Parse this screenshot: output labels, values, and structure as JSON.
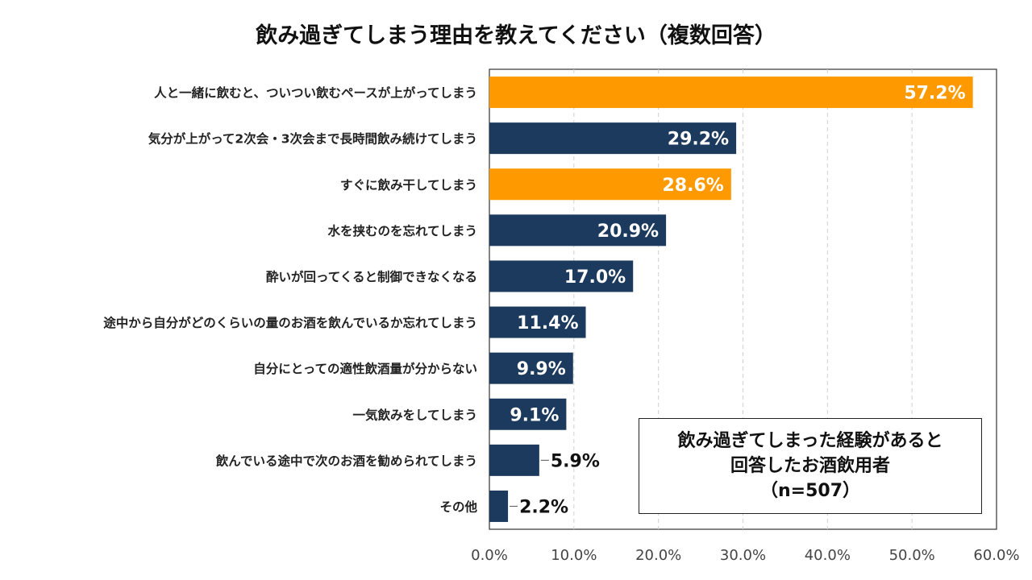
{
  "chart_data": {
    "type": "bar",
    "orientation": "horizontal",
    "title": "飲み過ぎてしまう理由を教えてください（複数回答）",
    "categories": [
      "人と一緒に飲むと、ついつい飲むペースが上がってしまう",
      "気分が上がって2次会・3次会まで長時間飲み続けてしまう",
      "すぐに飲み干してしまう",
      "水を挟むのを忘れてしまう",
      "酔いが回ってくると制御できなくなる",
      "途中から自分がどのくらいの量のお酒を飲んでいるか忘れてしまう",
      "自分にとっての適性飲酒量が分からない",
      "一気飲みをしてしまう",
      "飲んでいる途中で次のお酒を勧められてしまう",
      "その他"
    ],
    "values": [
      57.2,
      29.2,
      28.6,
      20.9,
      17.0,
      11.4,
      9.9,
      9.1,
      5.9,
      2.2
    ],
    "value_labels": [
      "57.2%",
      "29.2%",
      "28.6%",
      "20.9%",
      "17.0%",
      "11.4%",
      "9.9%",
      "9.1%",
      "5.9%",
      "2.2%"
    ],
    "highlight": [
      true,
      false,
      true,
      false,
      false,
      false,
      false,
      false,
      false,
      false
    ],
    "xlim": [
      0,
      60
    ],
    "xticks": [
      "0.0%",
      "10.0%",
      "20.0%",
      "30.0%",
      "40.0%",
      "50.0%",
      "60.0%"
    ],
    "grid": "vertical dashed",
    "colors": {
      "highlight": "#FF9900",
      "default": "#1B3A5E"
    }
  },
  "note": {
    "line1": "飲み過ぎてしまった経験があると",
    "line2": "回答したお酒飲用者",
    "line3": "（n=507）"
  }
}
